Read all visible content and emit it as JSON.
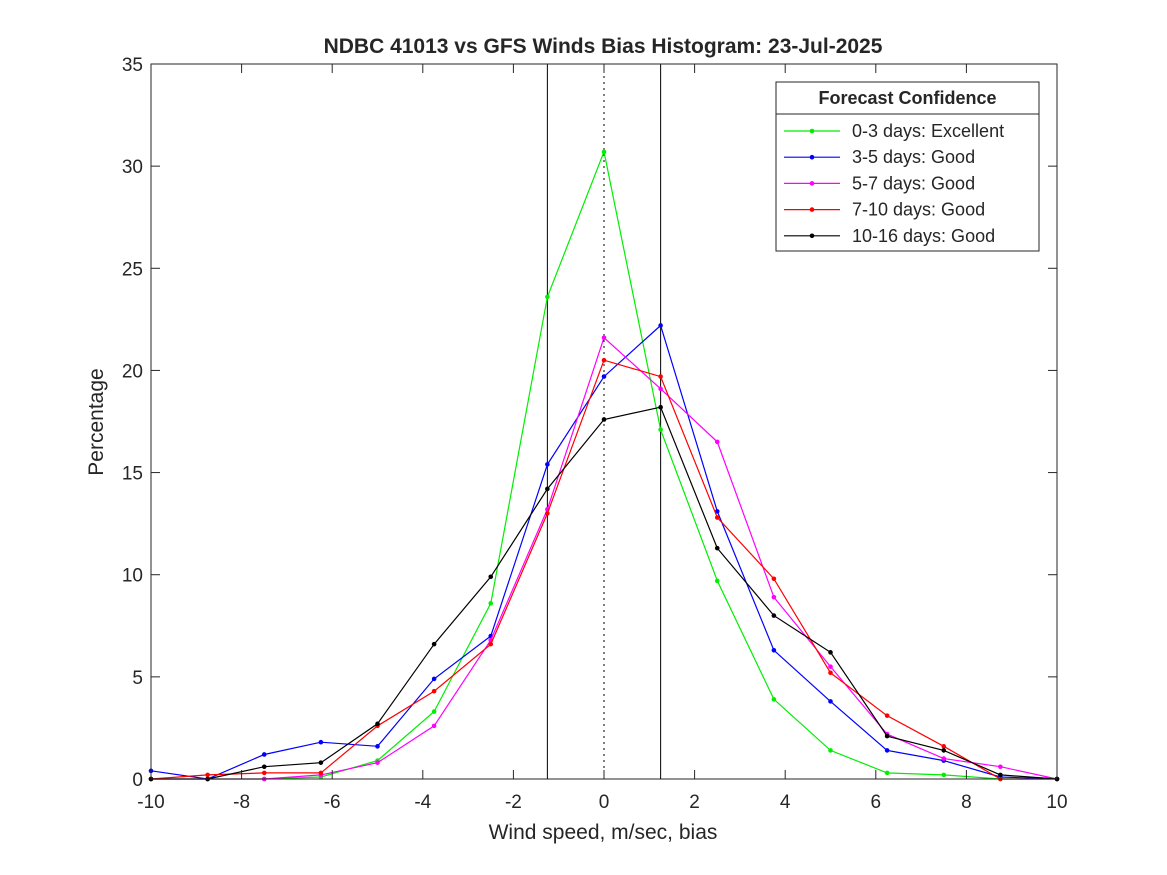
{
  "chart_data": {
    "type": "line",
    "title": "NDBC 41013 vs GFS Winds Bias Histogram: 23-Jul-2025",
    "xlabel": "Wind speed, m/sec, bias",
    "ylabel": "Percentage",
    "xlim": [
      -10,
      10
    ],
    "ylim": [
      0,
      35
    ],
    "xticks": [
      -10,
      -8,
      -6,
      -4,
      -2,
      0,
      2,
      4,
      6,
      8,
      10
    ],
    "yticks": [
      0,
      5,
      10,
      15,
      20,
      25,
      30,
      35
    ],
    "grid": false,
    "legend": {
      "title": "Forecast Confidence",
      "placement": "top-right"
    },
    "reference_lines": [
      {
        "x": -1.25,
        "style": "solid"
      },
      {
        "x": 0,
        "style": "dotted"
      },
      {
        "x": 1.25,
        "style": "solid"
      }
    ],
    "x": [
      -10,
      -8.75,
      -7.5,
      -6.25,
      -5,
      -3.75,
      -2.5,
      -1.25,
      0,
      1.25,
      2.5,
      3.75,
      5,
      6.25,
      7.5,
      8.75,
      10
    ],
    "series": [
      {
        "name": "0-3 days: Excellent",
        "color": "#00ee00",
        "values": [
          0,
          0,
          0,
          0.1,
          0.9,
          3.3,
          8.6,
          23.6,
          30.7,
          17.1,
          9.7,
          3.9,
          1.4,
          0.3,
          0.2,
          0,
          0
        ]
      },
      {
        "name": "3-5 days: Good",
        "color": "#0000ff",
        "values": [
          0.4,
          0,
          1.2,
          1.8,
          1.6,
          4.9,
          7.0,
          15.4,
          19.7,
          22.2,
          13.1,
          6.3,
          3.8,
          1.4,
          0.9,
          0.1,
          0
        ]
      },
      {
        "name": "5-7 days: Good",
        "color": "#ff00ff",
        "values": [
          0,
          0,
          0,
          0.2,
          0.8,
          2.6,
          6.8,
          13.2,
          21.6,
          19.1,
          16.5,
          8.9,
          5.5,
          2.2,
          1.0,
          0.6,
          0
        ]
      },
      {
        "name": "7-10 days: Good",
        "color": "#ff0000",
        "values": [
          0,
          0.2,
          0.3,
          0.3,
          2.6,
          4.3,
          6.6,
          13.0,
          20.5,
          19.7,
          12.8,
          9.8,
          5.2,
          3.1,
          1.6,
          0,
          0
        ]
      },
      {
        "name": "10-16 days: Good",
        "color": "#000000",
        "values": [
          0,
          0,
          0.6,
          0.8,
          2.7,
          6.6,
          9.9,
          14.2,
          17.6,
          18.2,
          11.3,
          8.0,
          6.2,
          2.1,
          1.4,
          0.2,
          0
        ]
      }
    ]
  }
}
